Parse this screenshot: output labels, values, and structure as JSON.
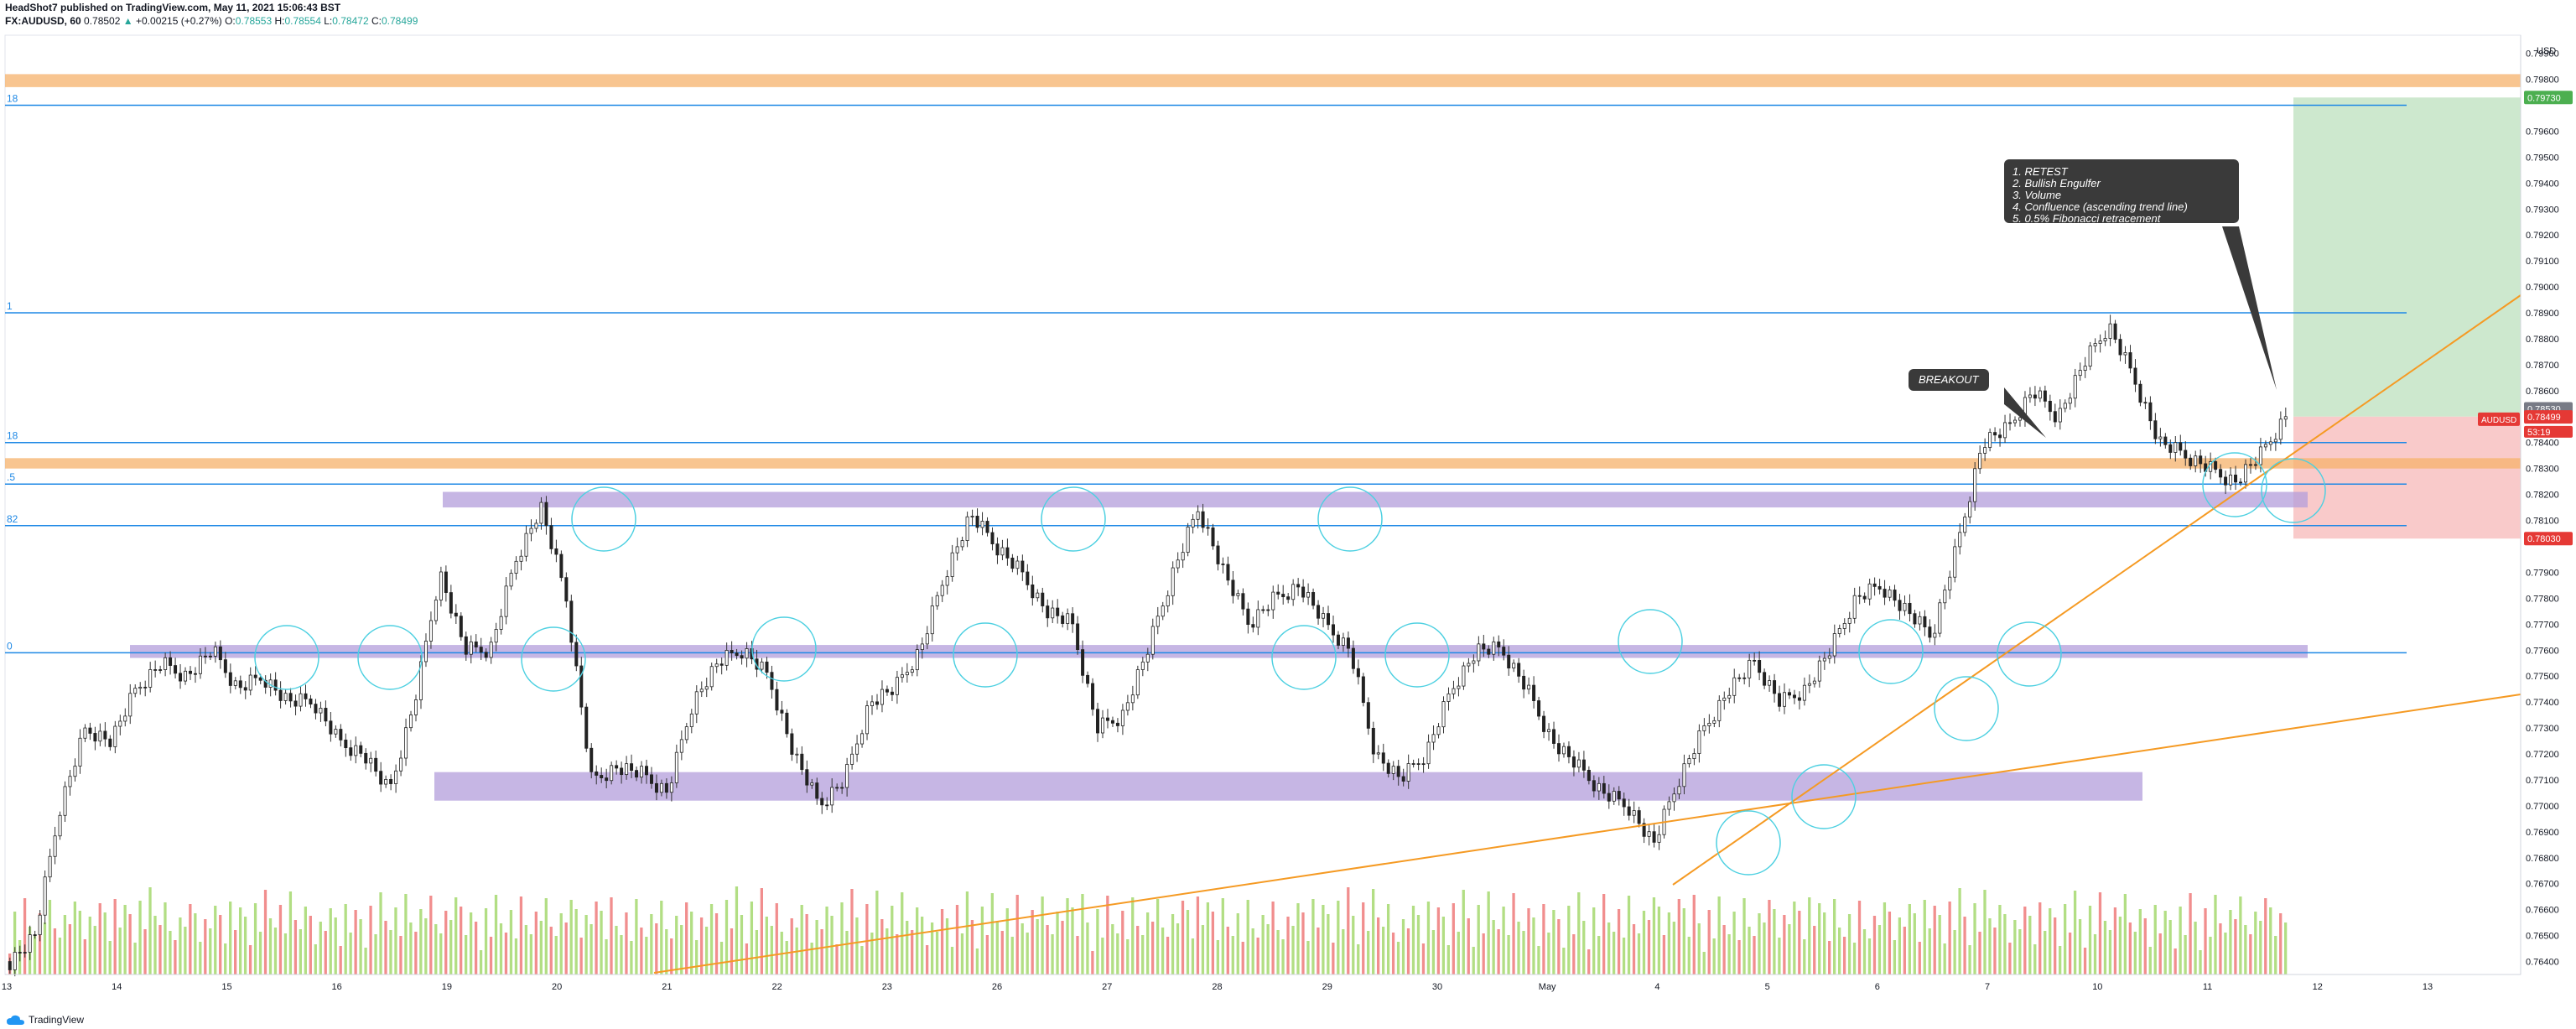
{
  "header": {
    "publish_line": "HeadShot7 published on TradingView.com, May 11, 2021 15:06:43 BST",
    "symbol": "FX:AUDUSD, 60",
    "price": "0.78502",
    "change": "+0.00215 (+0.27%)",
    "o_label": "O:",
    "o_value": "0.78553",
    "h_label": "H:",
    "h_value": "0.78554",
    "l_label": "L:",
    "l_value": "0.78472",
    "c_label": "C:",
    "c_value": "0.78499",
    "colors": {
      "up": "#26a69a",
      "down": "#ef5350"
    }
  },
  "price_axis": {
    "currency": "USD",
    "labels": [
      "0.79900",
      "0.79800",
      "0.79600",
      "0.79500",
      "0.79400",
      "0.79300",
      "0.79200",
      "0.79100",
      "0.79000",
      "0.78900",
      "0.78800",
      "0.78700",
      "0.78600",
      "0.78400",
      "0.78300",
      "0.78200",
      "0.78100",
      "0.77900",
      "0.77800",
      "0.77700",
      "0.77600",
      "0.77500",
      "0.77400",
      "0.77300",
      "0.77200",
      "0.77100",
      "0.77000",
      "0.76900",
      "0.76800",
      "0.76700",
      "0.76600",
      "0.76500",
      "0.76400"
    ],
    "tags": {
      "target": "0.79730",
      "last": "0.78530",
      "symbol_tag": "AUDUSD",
      "current": "0.78499",
      "countdown": "53:19",
      "stop": "0.78030"
    }
  },
  "time_axis": {
    "labels": [
      "13",
      "14",
      "15",
      "16",
      "19",
      "20",
      "21",
      "22",
      "23",
      "26",
      "27",
      "28",
      "29",
      "30",
      "May",
      "4",
      "5",
      "6",
      "7",
      "10",
      "11",
      "12",
      "13"
    ]
  },
  "fib_labels": [
    "18",
    "1",
    "18",
    ".5",
    "82",
    "0"
  ],
  "annotations": {
    "breakout": "BREAKOUT",
    "reasons": [
      "1. RETEST",
      "2. Bullish Engulfer",
      "3. Volume",
      "4. Confluence (ascending trend line)",
      "5. 0.5% Fibonacci retracement"
    ]
  },
  "footer": {
    "brand": "TradingView"
  },
  "chart_data": {
    "type": "candlestick",
    "symbol": "FX:AUDUSD",
    "interval": "60",
    "x_labels": [
      "13",
      "14",
      "15",
      "16",
      "19",
      "20",
      "21",
      "22",
      "23",
      "26",
      "27",
      "28",
      "29",
      "30",
      "May",
      "4",
      "5",
      "6",
      "7",
      "10",
      "11",
      "12",
      "13"
    ],
    "ylim": [
      0.7635,
      0.7997
    ],
    "levels": {
      "resistance_zone": [
        0.7977,
        0.7982
      ],
      "fib_top": 0.797,
      "fib_1": 0.789,
      "fib_mid": 0.784,
      "supply_zone": [
        0.783,
        0.7834
      ],
      "fib_half": 0.7824,
      "fib_82": 0.7808,
      "fib_0": 0.7759,
      "purple_zone_upper": [
        0.7815,
        0.7821
      ],
      "purple_zone_mid": [
        0.7757,
        0.7762
      ],
      "purple_zone_lower": [
        0.7702,
        0.7713
      ]
    },
    "trade": {
      "entry": 0.785,
      "target": 0.7973,
      "stop": 0.7803
    },
    "path": [
      0.764,
      0.765,
      0.77,
      0.773,
      0.7725,
      0.7745,
      0.7755,
      0.775,
      0.776,
      0.7745,
      0.775,
      0.774,
      0.774,
      0.7725,
      0.772,
      0.7705,
      0.774,
      0.779,
      0.776,
      0.776,
      0.7795,
      0.7815,
      0.778,
      0.771,
      0.7715,
      0.7712,
      0.7705,
      0.774,
      0.7755,
      0.776,
      0.775,
      0.772,
      0.77,
      0.771,
      0.774,
      0.7745,
      0.776,
      0.779,
      0.7812,
      0.78,
      0.779,
      0.7775,
      0.777,
      0.773,
      0.7735,
      0.776,
      0.779,
      0.7815,
      0.779,
      0.777,
      0.778,
      0.7785,
      0.777,
      0.776,
      0.772,
      0.771,
      0.772,
      0.7745,
      0.776,
      0.776,
      0.7745,
      0.7725,
      0.7715,
      0.7705,
      0.77,
      0.7685,
      0.771,
      0.773,
      0.7745,
      0.7755,
      0.774,
      0.7745,
      0.776,
      0.778,
      0.7785,
      0.7775,
      0.7765,
      0.78,
      0.784,
      0.7845,
      0.786,
      0.785,
      0.787,
      0.7885,
      0.7865,
      0.784,
      0.7835,
      0.783,
      0.7825,
      0.7835,
      0.785
    ]
  }
}
